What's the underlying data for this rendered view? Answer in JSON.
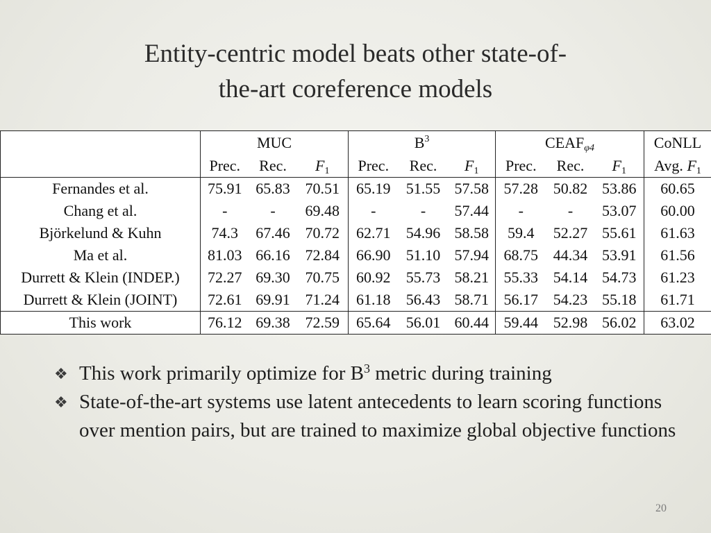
{
  "slide": {
    "title_line1": "Entity-centric model beats other state-of-",
    "title_line2": "the-art coreference models",
    "page_number": "20"
  },
  "table": {
    "groups": {
      "muc": "MUC",
      "b3_base": "B",
      "b3_sup": "3",
      "ceaf_base": "CEAF",
      "ceaf_sub": "φ4",
      "conll": "CoNLL"
    },
    "subheaders": {
      "prec": "Prec.",
      "rec": "Rec.",
      "f_base": "F",
      "f_sub": "1",
      "avg": "Avg."
    },
    "rows": [
      {
        "model": "Fernandes et al.",
        "muc": [
          "75.91",
          "65.83",
          "70.51"
        ],
        "b3": [
          "65.19",
          "51.55",
          "57.58"
        ],
        "ceaf": [
          "57.28",
          "50.82",
          "53.86"
        ],
        "conll": "60.65"
      },
      {
        "model": "Chang et al.",
        "muc": [
          "-",
          "-",
          "69.48"
        ],
        "b3": [
          "-",
          "-",
          "57.44"
        ],
        "ceaf": [
          "-",
          "-",
          "53.07"
        ],
        "conll": "60.00"
      },
      {
        "model": "Björkelund & Kuhn",
        "muc": [
          "74.3",
          "67.46",
          "70.72"
        ],
        "b3": [
          "62.71",
          "54.96",
          "58.58"
        ],
        "ceaf": [
          "59.4",
          "52.27",
          "55.61"
        ],
        "conll": "61.63"
      },
      {
        "model": "Ma et al.",
        "muc": [
          "81.03",
          "66.16",
          "72.84"
        ],
        "b3": [
          "66.90",
          "51.10",
          "57.94"
        ],
        "ceaf": [
          "68.75",
          "44.34",
          "53.91"
        ],
        "conll": "61.56"
      },
      {
        "model": "Durrett & Klein (INDEP.)",
        "muc": [
          "72.27",
          "69.30",
          "70.75"
        ],
        "b3": [
          "60.92",
          "55.73",
          "58.21"
        ],
        "ceaf": [
          "55.33",
          "54.14",
          "54.73"
        ],
        "conll": "61.23"
      },
      {
        "model": "Durrett & Klein (JOINT)",
        "muc": [
          "72.61",
          "69.91",
          "71.24"
        ],
        "b3": [
          "61.18",
          "56.43",
          "58.71"
        ],
        "ceaf": [
          "56.17",
          "54.23",
          "55.18"
        ],
        "conll": "61.71"
      }
    ],
    "this_work": {
      "model": "This work",
      "muc": [
        "76.12",
        "69.38",
        "72.59"
      ],
      "b3": [
        "65.64",
        "56.01",
        "60.44"
      ],
      "ceaf": [
        "59.44",
        "52.98",
        "56.02"
      ],
      "conll": "63.02"
    }
  },
  "bullets": {
    "icon": "diamond-bullet-icon",
    "b1_pre": "This work primarily optimize for B",
    "b1_sup": "3",
    "b1_post": " metric during training",
    "b2": "State-of-the-art systems use latent antecedents to learn scoring functions over mention pairs, but are trained to maximize global objective functions"
  }
}
